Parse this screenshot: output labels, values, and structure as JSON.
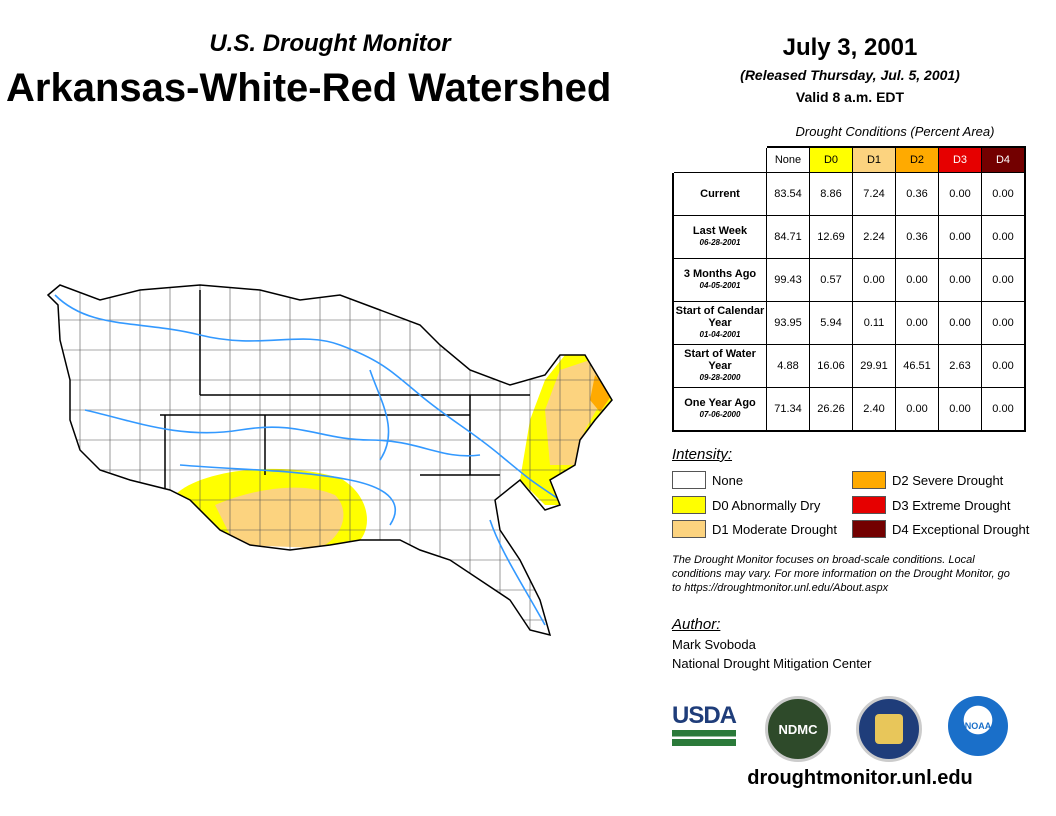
{
  "header": {
    "subtitle": "U.S. Drought Monitor",
    "title": "Arkansas-White-Red Watershed",
    "date": "July 3, 2001",
    "released": "(Released Thursday, Jul. 5, 2001)",
    "valid": "Valid 8 a.m. EDT"
  },
  "table": {
    "caption": "Drought Conditions (Percent Area)",
    "columns": [
      "None",
      "D0",
      "D1",
      "D2",
      "D3",
      "D4"
    ],
    "column_colors": [
      "#ffffff",
      "#ffff00",
      "#fcd37f",
      "#ffaa00",
      "#e60000",
      "#730000"
    ],
    "rows": [
      {
        "label": "Current",
        "date": "",
        "values": [
          "83.54",
          "8.86",
          "7.24",
          "0.36",
          "0.00",
          "0.00"
        ]
      },
      {
        "label": "Last Week",
        "date": "06-28-2001",
        "values": [
          "84.71",
          "12.69",
          "2.24",
          "0.36",
          "0.00",
          "0.00"
        ]
      },
      {
        "label": "3 Months Ago",
        "date": "04-05-2001",
        "values": [
          "99.43",
          "0.57",
          "0.00",
          "0.00",
          "0.00",
          "0.00"
        ]
      },
      {
        "label": "Start of Calendar Year",
        "date": "01-04-2001",
        "values": [
          "93.95",
          "5.94",
          "0.11",
          "0.00",
          "0.00",
          "0.00"
        ]
      },
      {
        "label": "Start of Water Year",
        "date": "09-28-2000",
        "values": [
          "4.88",
          "16.06",
          "29.91",
          "46.51",
          "2.63",
          "0.00"
        ]
      },
      {
        "label": "One Year Ago",
        "date": "07-06-2000",
        "values": [
          "71.34",
          "26.26",
          "2.40",
          "0.00",
          "0.00",
          "0.00"
        ]
      }
    ]
  },
  "legend": {
    "title": "Intensity:",
    "items": [
      {
        "label": "None",
        "color": "#ffffff"
      },
      {
        "label": "D0 Abnormally Dry",
        "color": "#ffff00"
      },
      {
        "label": "D1 Moderate Drought",
        "color": "#fcd37f"
      },
      {
        "label": "D2 Severe Drought",
        "color": "#ffaa00"
      },
      {
        "label": "D3 Extreme Drought",
        "color": "#e60000"
      },
      {
        "label": "D4 Exceptional Drought",
        "color": "#730000"
      }
    ]
  },
  "note": "The Drought Monitor focuses on broad-scale conditions. Local conditions may vary. For more information on the Drought Monitor, go to https://droughtmonitor.unl.edu/About.aspx",
  "author": {
    "label": "Author:",
    "name": "Mark Svoboda",
    "org": "National Drought Mitigation Center"
  },
  "logos": {
    "usda": "USDA",
    "ndmc": "NDMC",
    "noaa": "NOAA"
  },
  "footer": {
    "url": "droughtmonitor.unl.edu"
  }
}
